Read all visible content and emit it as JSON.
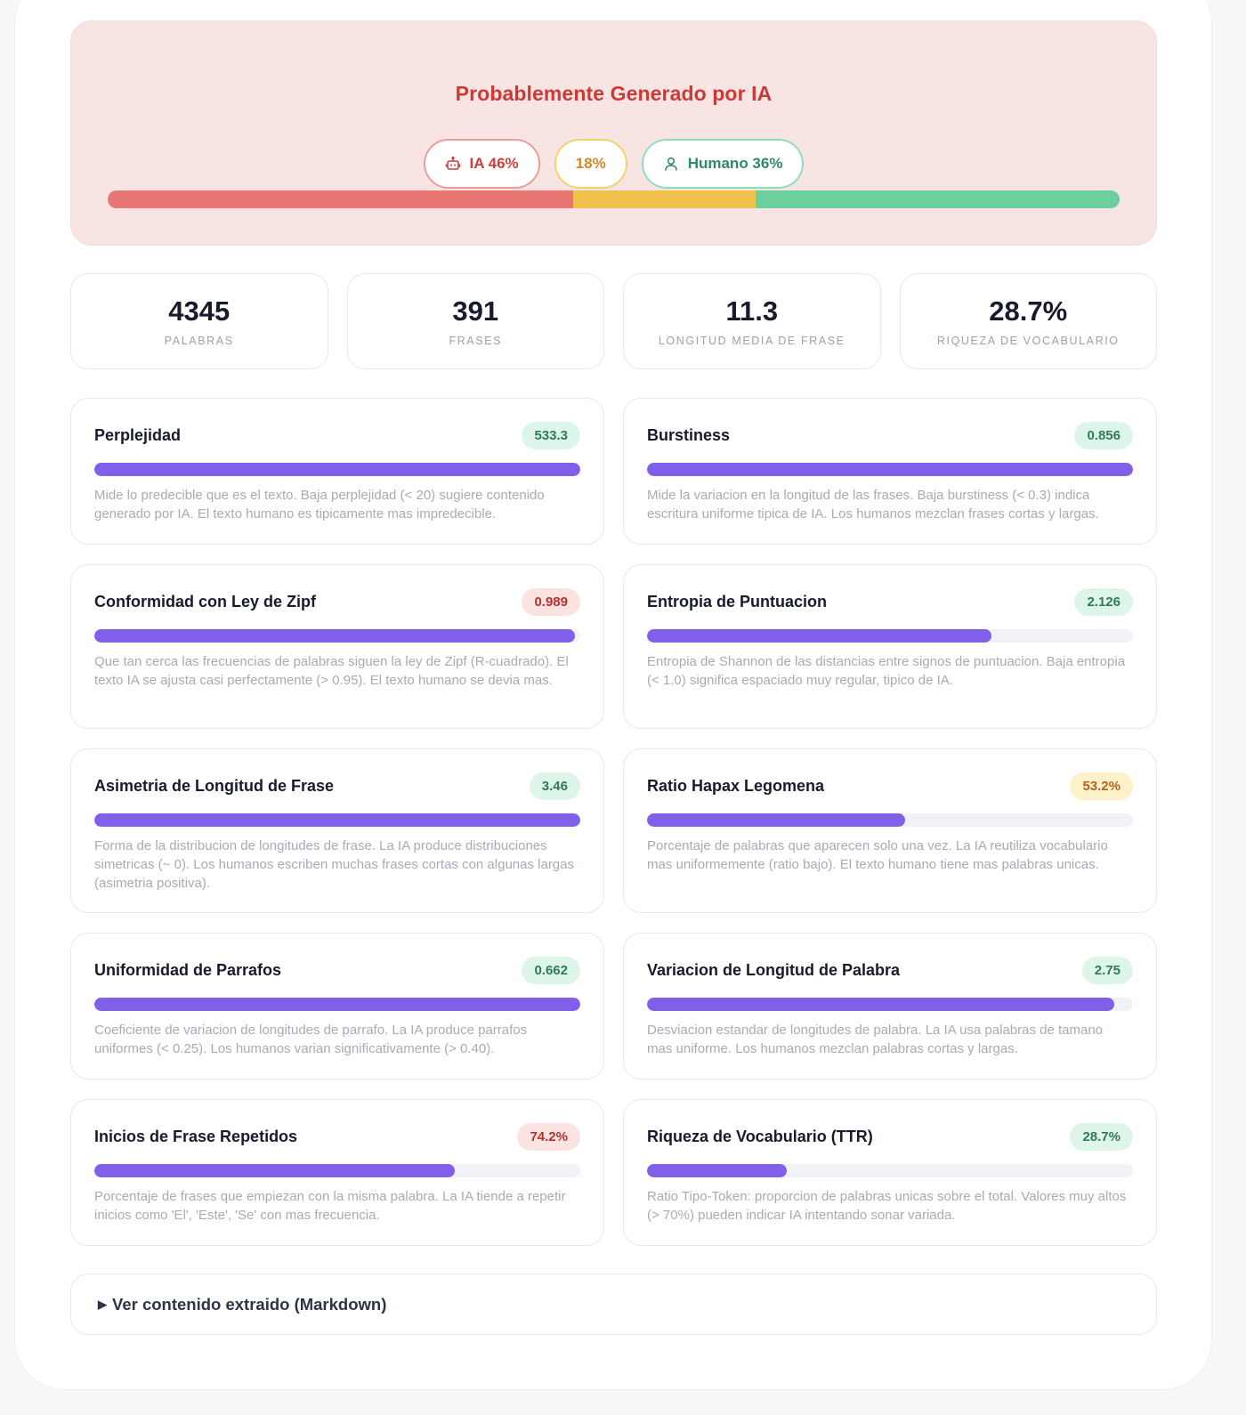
{
  "verdict": {
    "title": "Probablemente Generado por IA",
    "pills": {
      "ai": {
        "icon": "robot-icon",
        "label": "IA 46%"
      },
      "mixed": {
        "label": "18%"
      },
      "human": {
        "icon": "user-icon",
        "label": "Humano 36%"
      }
    },
    "bar": {
      "ai_pct": 46,
      "mixed_pct": 18,
      "human_pct": 36,
      "colors": {
        "ai": "#e87672",
        "mixed": "#f2c04c",
        "human": "#6bd09e"
      }
    }
  },
  "stats": [
    {
      "value": "4345",
      "label": "PALABRAS"
    },
    {
      "value": "391",
      "label": "FRASES"
    },
    {
      "value": "11.3",
      "label": "LONGITUD MEDIA DE FRASE"
    },
    {
      "value": "28.7%",
      "label": "RIQUEZA DE VOCABULARIO"
    }
  ],
  "metrics": [
    {
      "title": "Perplejidad",
      "value": "533.3",
      "status": "green",
      "fill_pct": 100,
      "description": "Mide lo predecible que es el texto. Baja perplejidad (< 20) sugiere contenido generado por IA. El texto humano es tipicamente mas impredecible."
    },
    {
      "title": "Burstiness",
      "value": "0.856",
      "status": "green",
      "fill_pct": 100,
      "description": "Mide la variacion en la longitud de las frases. Baja burstiness (< 0.3) indica escritura uniforme tipica de IA. Los humanos mezclan frases cortas y largas."
    },
    {
      "title": "Conformidad con Ley de Zipf",
      "value": "0.989",
      "status": "red",
      "fill_pct": 98.9,
      "description": "Que tan cerca las frecuencias de palabras siguen la ley de Zipf (R-cuadrado). El texto IA se ajusta casi perfectamente (> 0.95). El texto humano se devia mas."
    },
    {
      "title": "Entropia de Puntuacion",
      "value": "2.126",
      "status": "green",
      "fill_pct": 70.9,
      "description": "Entropia de Shannon de las distancias entre signos de puntuacion. Baja entropia (< 1.0) significa espaciado muy regular, tipico de IA."
    },
    {
      "title": "Asimetria de Longitud de Frase",
      "value": "3.46",
      "status": "green",
      "fill_pct": 100,
      "description": "Forma de la distribucion de longitudes de frase. La IA produce distribuciones simetricas (~ 0). Los humanos escriben muchas frases cortas con algunas largas (asimetria positiva)."
    },
    {
      "title": "Ratio Hapax Legomena",
      "value": "53.2%",
      "status": "yellow",
      "fill_pct": 53.2,
      "description": "Porcentaje de palabras que aparecen solo una vez. La IA reutiliza vocabulario mas uniformemente (ratio bajo). El texto humano tiene mas palabras unicas."
    },
    {
      "title": "Uniformidad de Parrafos",
      "value": "0.662",
      "status": "green",
      "fill_pct": 100,
      "description": "Coeficiente de variacion de longitudes de parrafo. La IA produce parrafos uniformes (< 0.25). Los humanos varian significativamente (> 0.40)."
    },
    {
      "title": "Variacion de Longitud de Palabra",
      "value": "2.75",
      "status": "green",
      "fill_pct": 96.2,
      "description": "Desviacion estandar de longitudes de palabra. La IA usa palabras de tamano mas uniforme. Los humanos mezclan palabras cortas y largas."
    },
    {
      "title": "Inicios de Frase Repetidos",
      "value": "74.2%",
      "status": "red",
      "fill_pct": 74.2,
      "description": "Porcentaje de frases que empiezan con la misma palabra. La IA tiende a repetir inicios como 'El', 'Este', 'Se' con mas frecuencia."
    },
    {
      "title": "Riqueza de Vocabulario (TTR)",
      "value": "28.7%",
      "status": "green",
      "fill_pct": 28.7,
      "description": "Ratio Tipo-Token: proporcion de palabras unicas sobre el total. Valores muy altos (> 70%) pueden indicar IA intentando sonar variada."
    }
  ],
  "details": {
    "label": "Ver contenido extraido (Markdown)",
    "icon": "triangle-right-icon"
  }
}
